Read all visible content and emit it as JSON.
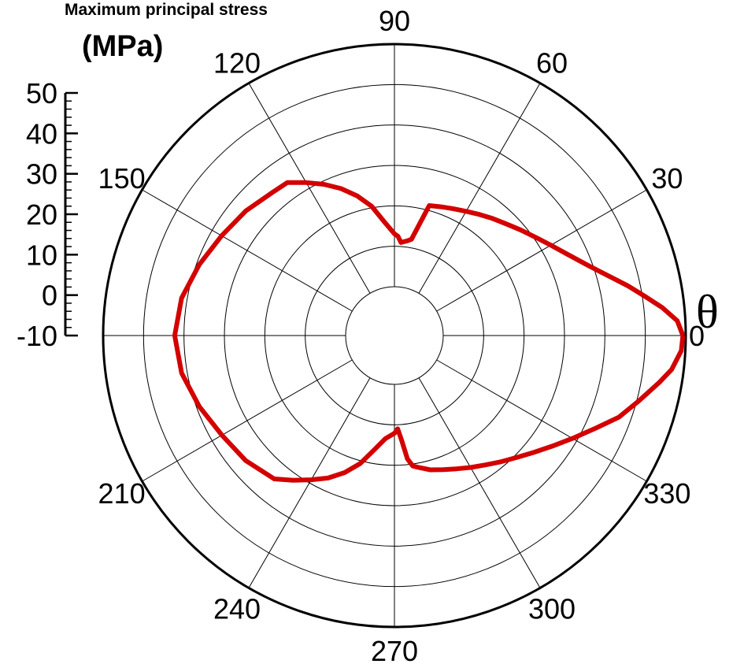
{
  "chart_data": {
    "type": "polar-line",
    "title": "",
    "radial_axis": {
      "label_line1": "Maximum principal stress",
      "label_line2": "(MPa)",
      "range": [
        -10,
        50
      ],
      "ticks": [
        50,
        40,
        30,
        20,
        10,
        0,
        -10
      ],
      "tick_labels": [
        "50",
        "40",
        "30",
        "20",
        "10",
        "0",
        "-10"
      ],
      "grid_rings": [
        -10,
        0,
        10,
        20,
        30,
        40,
        50
      ]
    },
    "angular_axis": {
      "label": "θ",
      "unit": "deg",
      "ticks": [
        0,
        30,
        60,
        90,
        120,
        150,
        210,
        240,
        270,
        300,
        330
      ],
      "tick_labels": [
        "0",
        "30",
        "60",
        "90",
        "120",
        "150",
        "210",
        "240",
        "270",
        "300",
        "330"
      ],
      "spokes_every_deg": 30
    },
    "grid": true,
    "series": [
      {
        "color": "#d40000",
        "theta": [
          0,
          3,
          6,
          9,
          12,
          15,
          20,
          25,
          30,
          35,
          40,
          45,
          50,
          55,
          60,
          65,
          70,
          75,
          80,
          82,
          86,
          88,
          90,
          95,
          100,
          105,
          110,
          115,
          120,
          125,
          130,
          140,
          150,
          160,
          170,
          180,
          190,
          200,
          210,
          220,
          230,
          235,
          240,
          245,
          250,
          255,
          260,
          265,
          270,
          272,
          274,
          276,
          278,
          280,
          285,
          290,
          295,
          300,
          305,
          310,
          315,
          320,
          325,
          330,
          335,
          340,
          345,
          350,
          353,
          357,
          360
        ],
        "r": [
          49.3,
          48.0,
          44.5,
          40.5,
          37.0,
          33.5,
          28.8,
          25.3,
          22.6,
          20.4,
          18.6,
          17.0,
          15.7,
          14.5,
          13.4,
          12.5,
          11.8,
          11.2,
          2.1,
          1.6,
          1.0,
          2.5,
          3.1,
          6.1,
          10.4,
          13.7,
          16.6,
          19.2,
          21.6,
          24.1,
          24.4,
          25.9,
          27.3,
          29.3,
          31.4,
          32.3,
          31.4,
          29.3,
          27.2,
          26.0,
          24.2,
          21.6,
          19.1,
          16.8,
          14.0,
          10.7,
          6.6,
          3.5,
          2.1,
          1.0,
          4.0,
          8.6,
          10.5,
          11.0,
          12.3,
          13.2,
          14.3,
          15.6,
          17.0,
          18.7,
          20.6,
          22.9,
          25.6,
          28.8,
          32.5,
          37.0,
          40.5,
          44.5,
          47.0,
          49.0,
          49.3
        ]
      }
    ]
  }
}
